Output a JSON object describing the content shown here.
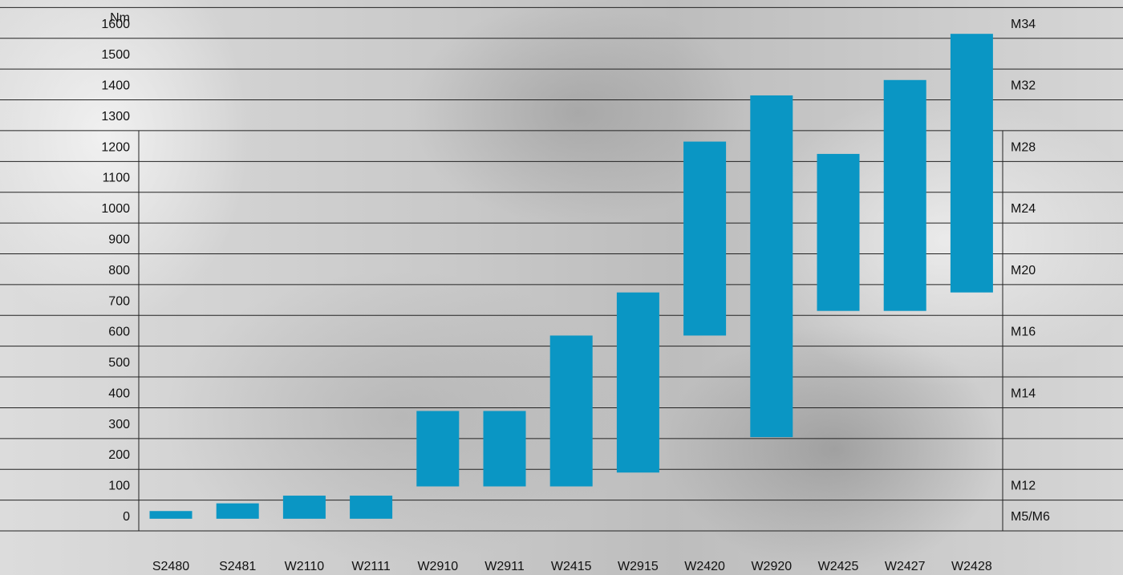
{
  "chart_data": {
    "type": "bar",
    "subtype": "floating-range",
    "ylabel": "Nm",
    "ylim": [
      0,
      1600
    ],
    "y_ticks": [
      0,
      100,
      200,
      300,
      400,
      500,
      600,
      700,
      800,
      900,
      1000,
      1100,
      1200,
      1300,
      1400,
      1500,
      1600
    ],
    "categories": [
      "S2480",
      "S2481",
      "W2110",
      "W2111",
      "W2910",
      "W2911",
      "W2415",
      "W2915",
      "W2420",
      "W2920",
      "W2425",
      "W2427",
      "W2428"
    ],
    "ranges": [
      [
        -10,
        15
      ],
      [
        -10,
        40
      ],
      [
        -10,
        65
      ],
      [
        -10,
        65
      ],
      [
        95,
        340
      ],
      [
        95,
        340
      ],
      [
        95,
        585
      ],
      [
        140,
        725
      ],
      [
        585,
        1215
      ],
      [
        255,
        1365
      ],
      [
        665,
        1175
      ],
      [
        665,
        1415
      ],
      [
        725,
        1565
      ]
    ],
    "right_labels": [
      {
        "label": "M34",
        "y": 1600
      },
      {
        "label": "M32",
        "y": 1400
      },
      {
        "label": "M28",
        "y": 1200
      },
      {
        "label": "M24",
        "y": 1000
      },
      {
        "label": "M20",
        "y": 800
      },
      {
        "label": "M16",
        "y": 600
      },
      {
        "label": "M14",
        "y": 400
      },
      {
        "label": "M12",
        "y": 100
      },
      {
        "label": "M5/M6",
        "y": 0
      }
    ],
    "grid": true,
    "bar_color": "#0a96c4"
  }
}
